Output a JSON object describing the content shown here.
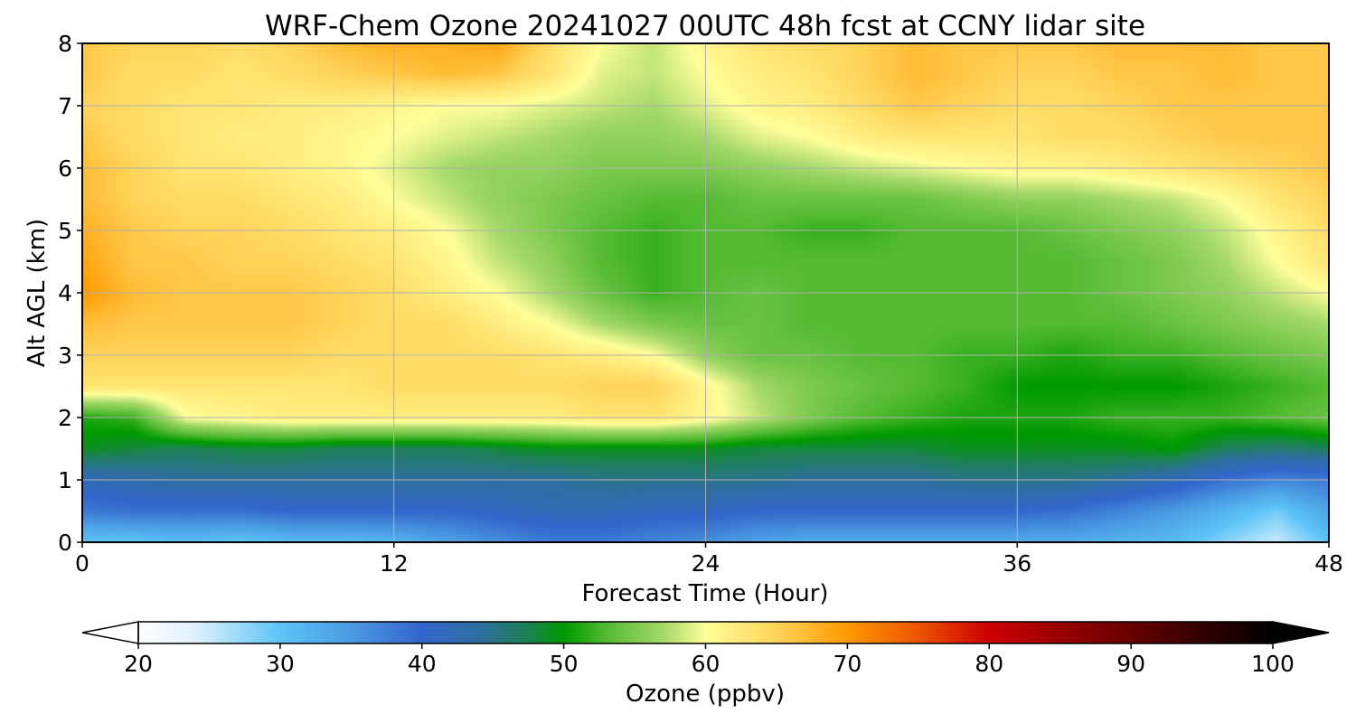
{
  "chart_data": {
    "type": "heatmap",
    "title": "WRF-Chem Ozone  20241027 00UTC 48h fcst at CCNY lidar site",
    "xlabel": "Forecast Time (Hour)",
    "ylabel": "Alt AGL (km)",
    "xlim": [
      0,
      48
    ],
    "ylim": [
      0,
      8
    ],
    "x_ticks": [
      0,
      12,
      24,
      36,
      48
    ],
    "y_ticks": [
      0,
      1,
      2,
      3,
      4,
      5,
      6,
      7,
      8
    ],
    "grid": true,
    "x": [
      0,
      2,
      4,
      6,
      8,
      10,
      12,
      14,
      16,
      18,
      20,
      22,
      24,
      26,
      28,
      30,
      32,
      34,
      36,
      38,
      40,
      42,
      44,
      46,
      48
    ],
    "y": [
      0,
      0.5,
      1,
      1.5,
      2,
      2.5,
      3,
      3.5,
      4,
      4.5,
      5,
      5.5,
      6,
      6.5,
      7,
      7.5,
      8
    ],
    "z": [
      [
        30,
        30,
        31,
        30,
        31,
        31,
        32,
        34,
        36,
        38,
        38,
        37,
        36,
        34,
        33,
        33,
        33,
        33,
        33,
        33,
        32,
        31,
        28,
        25,
        30
      ],
      [
        38,
        39,
        39,
        39,
        40,
        40,
        40,
        40,
        41,
        42,
        42,
        41,
        41,
        40,
        40,
        40,
        40,
        40,
        40,
        39,
        37,
        35,
        32,
        29,
        34
      ],
      [
        42,
        43,
        44,
        44,
        44,
        44,
        44,
        44,
        44,
        44,
        45,
        45,
        45,
        45,
        44,
        44,
        44,
        45,
        45,
        45,
        44,
        42,
        39,
        37,
        38
      ],
      [
        49,
        48,
        47,
        48,
        48,
        47,
        47,
        47,
        48,
        49,
        49,
        49,
        49,
        48,
        48,
        48,
        48,
        49,
        49,
        49,
        49,
        50,
        47,
        46,
        47
      ],
      [
        51,
        52,
        60,
        61,
        62,
        62,
        62,
        62,
        62,
        62,
        63,
        63,
        61,
        58,
        55,
        53,
        52,
        51,
        51,
        51,
        52,
        52,
        52,
        53,
        54
      ],
      [
        63,
        63,
        63,
        63,
        63,
        63,
        64,
        64,
        64,
        64,
        65,
        65,
        61,
        57,
        55,
        54,
        53,
        52,
        50,
        50,
        50,
        50,
        51,
        52,
        53
      ],
      [
        65,
        65,
        65,
        65,
        65,
        64,
        64,
        64,
        64,
        63,
        62,
        60,
        56,
        54,
        54,
        53,
        53,
        52,
        52,
        51,
        52,
        52,
        53,
        54,
        55
      ],
      [
        67,
        66,
        66,
        66,
        66,
        65,
        64,
        64,
        62,
        60,
        57,
        55,
        54,
        54,
        53,
        53,
        53,
        53,
        53,
        53,
        53,
        54,
        55,
        56,
        57
      ],
      [
        70,
        67,
        66,
        66,
        66,
        65,
        64,
        62,
        60,
        57,
        54,
        52,
        53,
        54,
        53,
        53,
        53,
        53,
        53,
        53,
        54,
        55,
        56,
        58,
        60
      ],
      [
        69,
        66,
        66,
        65,
        65,
        64,
        63,
        61,
        58,
        56,
        53,
        52,
        53,
        53,
        53,
        53,
        53,
        53,
        53,
        53,
        54,
        55,
        57,
        60,
        63
      ],
      [
        68,
        66,
        65,
        65,
        64,
        63,
        62,
        60,
        57,
        55,
        53,
        52,
        53,
        53,
        52,
        52,
        53,
        53,
        53,
        54,
        55,
        56,
        58,
        61,
        64
      ],
      [
        67,
        65,
        64,
        64,
        63,
        62,
        60,
        58,
        56,
        55,
        54,
        53,
        53,
        54,
        54,
        54,
        54,
        55,
        56,
        56,
        57,
        58,
        60,
        63,
        65
      ],
      [
        67,
        65,
        63,
        63,
        62,
        61,
        59,
        57,
        56,
        56,
        55,
        55,
        55,
        56,
        57,
        58,
        59,
        60,
        61,
        61,
        62,
        63,
        64,
        65,
        66
      ],
      [
        66,
        64,
        63,
        62,
        62,
        61,
        60,
        59,
        58,
        57,
        56,
        56,
        57,
        59,
        60,
        62,
        63,
        63,
        63,
        64,
        64,
        65,
        66,
        66,
        66
      ],
      [
        65,
        64,
        63,
        63,
        62,
        62,
        61,
        60,
        60,
        59,
        58,
        57,
        59,
        61,
        62,
        64,
        66,
        65,
        64,
        64,
        65,
        66,
        66,
        66,
        66
      ],
      [
        66,
        64,
        64,
        63,
        64,
        65,
        66,
        67,
        66,
        63,
        59,
        58,
        60,
        62,
        63,
        65,
        67,
        66,
        65,
        65,
        66,
        66,
        67,
        66,
        66
      ],
      [
        66,
        65,
        65,
        64,
        65,
        67,
        68,
        68,
        69,
        64,
        60,
        58,
        61,
        63,
        64,
        65,
        67,
        66,
        66,
        66,
        67,
        67,
        67,
        66,
        66
      ]
    ],
    "colorbar": {
      "label": "Ozone  (ppbv)",
      "min": 20,
      "max": 100,
      "ticks": [
        20,
        30,
        40,
        50,
        60,
        70,
        80,
        90,
        100
      ],
      "extend": "both",
      "color_stops": [
        {
          "v": 20,
          "c": "#ffffff"
        },
        {
          "v": 24,
          "c": "#dff2fd"
        },
        {
          "v": 30,
          "c": "#5dc4f8"
        },
        {
          "v": 35,
          "c": "#4a9be2"
        },
        {
          "v": 40,
          "c": "#3366cc"
        },
        {
          "v": 44,
          "c": "#2e6fa0"
        },
        {
          "v": 47,
          "c": "#1f7f5c"
        },
        {
          "v": 50,
          "c": "#009900"
        },
        {
          "v": 53,
          "c": "#55bb33"
        },
        {
          "v": 57,
          "c": "#a5d96a"
        },
        {
          "v": 60,
          "c": "#fffe99"
        },
        {
          "v": 65,
          "c": "#ffd45a"
        },
        {
          "v": 70,
          "c": "#ff9900"
        },
        {
          "v": 75,
          "c": "#ee5500"
        },
        {
          "v": 80,
          "c": "#cc0000"
        },
        {
          "v": 85,
          "c": "#990000"
        },
        {
          "v": 90,
          "c": "#660000"
        },
        {
          "v": 95,
          "c": "#330000"
        },
        {
          "v": 100,
          "c": "#000000"
        }
      ]
    }
  }
}
